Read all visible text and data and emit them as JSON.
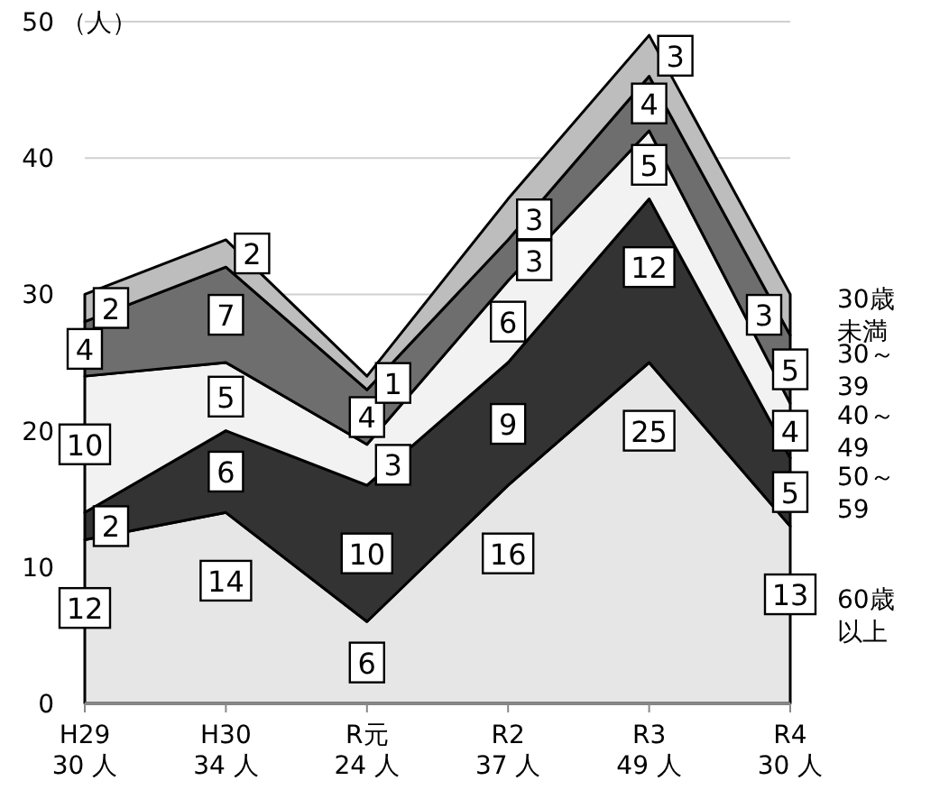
{
  "chart_data": {
    "type": "area",
    "stacked": true,
    "ylabel": "（人）",
    "categories": [
      "H29 30 人",
      "H30 34 人",
      "R元 24 人",
      "R2 37 人",
      "R3 49 人",
      "R4 30 人"
    ],
    "legend": "right",
    "series": [
      {
        "name": "60歳以上",
        "color": "#e6e6e6",
        "values": [
          12,
          14,
          6,
          16,
          25,
          13
        ]
      },
      {
        "name": "50～59",
        "color": "#333333",
        "values": [
          2,
          6,
          10,
          9,
          12,
          5
        ]
      },
      {
        "name": "40～49",
        "color": "#f2f2f2",
        "values": [
          10,
          5,
          3,
          6,
          5,
          4
        ]
      },
      {
        "name": "30～39",
        "color": "#6e6e6e",
        "values": [
          4,
          7,
          4,
          3,
          4,
          5
        ]
      },
      {
        "name": "30歳未満",
        "color": "#bdbdbd",
        "values": [
          2,
          2,
          1,
          3,
          3,
          3
        ]
      }
    ],
    "ylim": [
      0,
      50
    ],
    "yticks": [
      0,
      10,
      20,
      30,
      40,
      50
    ],
    "grid": "y",
    "data_labels": true
  }
}
